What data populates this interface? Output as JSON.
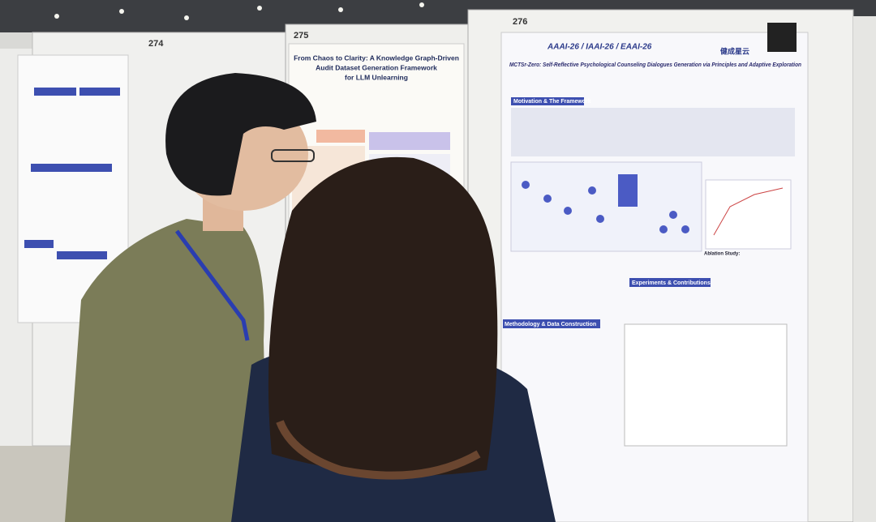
{
  "boards": [
    {
      "number": "274"
    },
    {
      "number": "275"
    },
    {
      "number": "276"
    }
  ],
  "poster_275": {
    "title_lines": [
      "From Chaos to Clarity: A Knowledge Graph-Driven",
      "Audit Dataset Generation Framework",
      "for LLM Unlearning"
    ]
  },
  "poster_276": {
    "conference": "AAAI-26 / IAAI-26 / EAAI-26",
    "title": "MCTSr-Zero: Self-Reflective Psychological Counseling Dialogues Generation via Principles and Adaptive Exploration",
    "sponsor": "健成星云",
    "sections": [
      "Motivation & The Framework",
      "Experiments & Contributions",
      "Methodology & Data Construction"
    ],
    "ablation": "Ablation Study:"
  }
}
